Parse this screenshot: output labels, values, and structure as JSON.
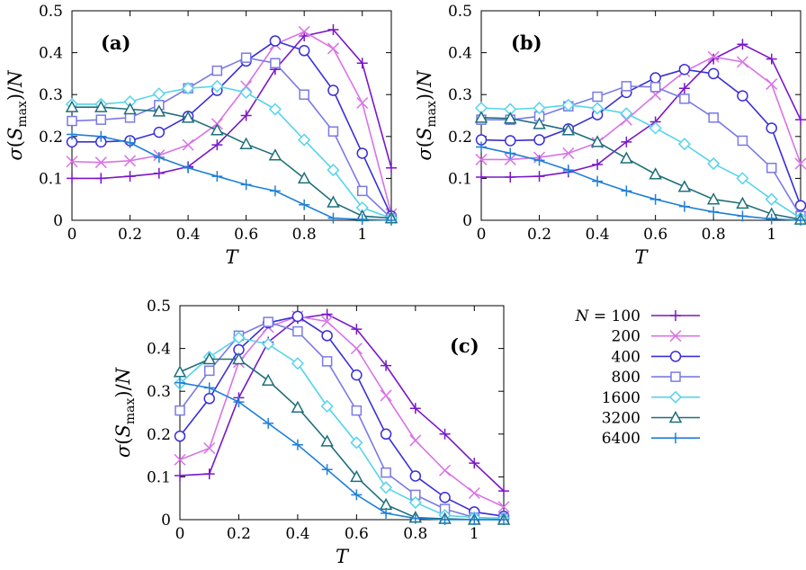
{
  "figure": {
    "legend_prefix": "N = ",
    "legend_placement": "right of panel (c)"
  },
  "series_style": [
    {
      "N": "100",
      "color": "#7a17c7",
      "marker": "plus"
    },
    {
      "N": "200",
      "color": "#d973e6",
      "marker": "cross"
    },
    {
      "N": "400",
      "color": "#3a2fd6",
      "marker": "circle"
    },
    {
      "N": "800",
      "color": "#7a7ae6",
      "marker": "square"
    },
    {
      "N": "1600",
      "color": "#56d3ec",
      "marker": "diamond"
    },
    {
      "N": "3200",
      "color": "#1f6f7a",
      "marker": "triangle"
    },
    {
      "N": "6400",
      "color": "#1f7fd8",
      "marker": "plus"
    }
  ],
  "chart_data": [
    {
      "type": "line",
      "panel_label": "(a)",
      "xlabel": "T",
      "ylabel": "σ(S_max)/N",
      "xlim": [
        0,
        1.1
      ],
      "ylim": [
        0,
        0.5
      ],
      "xticks": [
        "0",
        "0.2",
        "0.4",
        "0.6",
        "0.8",
        "1"
      ],
      "yticks": [
        "0",
        "0.1",
        "0.2",
        "0.3",
        "0.4",
        "0.5"
      ],
      "x": [
        0,
        0.1,
        0.2,
        0.3,
        0.4,
        0.5,
        0.6,
        0.7,
        0.8,
        0.9,
        1.0,
        1.1
      ],
      "series": [
        {
          "name": "N = 100",
          "values": [
            0.1,
            0.1,
            0.105,
            0.112,
            0.128,
            0.18,
            0.25,
            0.36,
            0.44,
            0.455,
            0.375,
            0.125
          ]
        },
        {
          "name": "N = 200",
          "values": [
            0.14,
            0.138,
            0.142,
            0.155,
            0.18,
            0.23,
            0.32,
            0.42,
            0.45,
            0.41,
            0.28,
            0.015
          ]
        },
        {
          "name": "N = 400",
          "values": [
            0.187,
            0.187,
            0.19,
            0.21,
            0.248,
            0.31,
            0.38,
            0.428,
            0.405,
            0.31,
            0.16,
            0.01
          ]
        },
        {
          "name": "N = 800",
          "values": [
            0.237,
            0.24,
            0.245,
            0.275,
            0.315,
            0.357,
            0.388,
            0.375,
            0.3,
            0.212,
            0.07,
            0.005
          ]
        },
        {
          "name": "N = 1600",
          "values": [
            0.277,
            0.277,
            0.283,
            0.302,
            0.315,
            0.32,
            0.305,
            0.265,
            0.192,
            0.12,
            0.03,
            0.005
          ]
        },
        {
          "name": "N = 3200",
          "values": [
            0.27,
            0.27,
            0.265,
            0.26,
            0.245,
            0.215,
            0.182,
            0.155,
            0.1,
            0.043,
            0.01,
            0.005
          ]
        },
        {
          "name": "N = 6400",
          "values": [
            0.205,
            0.2,
            0.185,
            0.15,
            0.125,
            0.105,
            0.085,
            0.07,
            0.037,
            0.005,
            0.002,
            0.0
          ]
        }
      ]
    },
    {
      "type": "line",
      "panel_label": "(b)",
      "xlabel": "T",
      "ylabel": "σ(S_max)/N",
      "xlim": [
        0,
        1.1
      ],
      "ylim": [
        0,
        0.5
      ],
      "xticks": [
        "0",
        "0.2",
        "0.4",
        "0.6",
        "0.8",
        "1"
      ],
      "yticks": [
        "0",
        "0.1",
        "0.2",
        "0.3",
        "0.4",
        "0.5"
      ],
      "x": [
        0,
        0.1,
        0.2,
        0.3,
        0.4,
        0.5,
        0.6,
        0.7,
        0.8,
        0.9,
        1.0,
        1.1
      ],
      "series": [
        {
          "name": "N = 100",
          "values": [
            0.103,
            0.103,
            0.105,
            0.115,
            0.133,
            0.187,
            0.235,
            0.315,
            0.385,
            0.42,
            0.385,
            0.24
          ]
        },
        {
          "name": "N = 200",
          "values": [
            0.145,
            0.145,
            0.15,
            0.16,
            0.185,
            0.24,
            0.3,
            0.355,
            0.39,
            0.378,
            0.325,
            0.135
          ]
        },
        {
          "name": "N = 400",
          "values": [
            0.192,
            0.19,
            0.192,
            0.218,
            0.252,
            0.305,
            0.34,
            0.36,
            0.35,
            0.297,
            0.22,
            0.035
          ]
        },
        {
          "name": "N = 800",
          "values": [
            0.24,
            0.24,
            0.248,
            0.272,
            0.295,
            0.32,
            0.318,
            0.29,
            0.245,
            0.19,
            0.125,
            0.01
          ]
        },
        {
          "name": "N = 1600",
          "values": [
            0.268,
            0.265,
            0.268,
            0.275,
            0.267,
            0.255,
            0.22,
            0.182,
            0.135,
            0.1,
            0.05,
            0.005
          ]
        },
        {
          "name": "N = 3200",
          "values": [
            0.245,
            0.243,
            0.23,
            0.215,
            0.187,
            0.148,
            0.11,
            0.08,
            0.05,
            0.04,
            0.015,
            0.002
          ]
        },
        {
          "name": "N = 6400",
          "values": [
            0.175,
            0.16,
            0.143,
            0.12,
            0.093,
            0.07,
            0.05,
            0.033,
            0.02,
            0.01,
            0.003,
            0.0
          ]
        }
      ]
    },
    {
      "type": "line",
      "panel_label": "(c)",
      "xlabel": "T",
      "ylabel": "σ(S_max)/N",
      "xlim": [
        0,
        1.1
      ],
      "ylim": [
        0,
        0.5
      ],
      "xticks": [
        "0",
        "0.2",
        "0.4",
        "0.6",
        "0.8",
        "1"
      ],
      "yticks": [
        "0",
        "0.1",
        "0.2",
        "0.3",
        "0.4",
        "0.5"
      ],
      "x": [
        0,
        0.1,
        0.2,
        0.3,
        0.4,
        0.5,
        0.6,
        0.7,
        0.8,
        0.9,
        1.0,
        1.1
      ],
      "series": [
        {
          "name": "N = 100",
          "values": [
            0.103,
            0.107,
            0.285,
            0.415,
            0.47,
            0.48,
            0.445,
            0.36,
            0.26,
            0.2,
            0.132,
            0.067
          ]
        },
        {
          "name": "N = 200",
          "values": [
            0.14,
            0.167,
            0.368,
            0.45,
            0.475,
            0.463,
            0.4,
            0.29,
            0.185,
            0.115,
            0.062,
            0.03
          ]
        },
        {
          "name": "N = 400",
          "values": [
            0.195,
            0.283,
            0.397,
            0.46,
            0.475,
            0.43,
            0.338,
            0.2,
            0.102,
            0.052,
            0.018,
            0.008
          ]
        },
        {
          "name": "N = 800",
          "values": [
            0.255,
            0.348,
            0.43,
            0.462,
            0.44,
            0.37,
            0.255,
            0.11,
            0.058,
            0.025,
            0.005,
            0.003
          ]
        },
        {
          "name": "N = 1600",
          "values": [
            0.318,
            0.38,
            0.425,
            0.41,
            0.365,
            0.265,
            0.18,
            0.075,
            0.04,
            0.01,
            0.005,
            0.002
          ]
        },
        {
          "name": "N = 3200",
          "values": [
            0.345,
            0.375,
            0.375,
            0.325,
            0.262,
            0.183,
            0.1,
            0.035,
            0.005,
            0.002,
            0.0,
            0.0
          ]
        },
        {
          "name": "N = 6400",
          "values": [
            0.32,
            0.308,
            0.275,
            0.225,
            0.175,
            0.117,
            0.058,
            0.015,
            0.003,
            0.0,
            0.0,
            0.0
          ]
        }
      ]
    }
  ]
}
